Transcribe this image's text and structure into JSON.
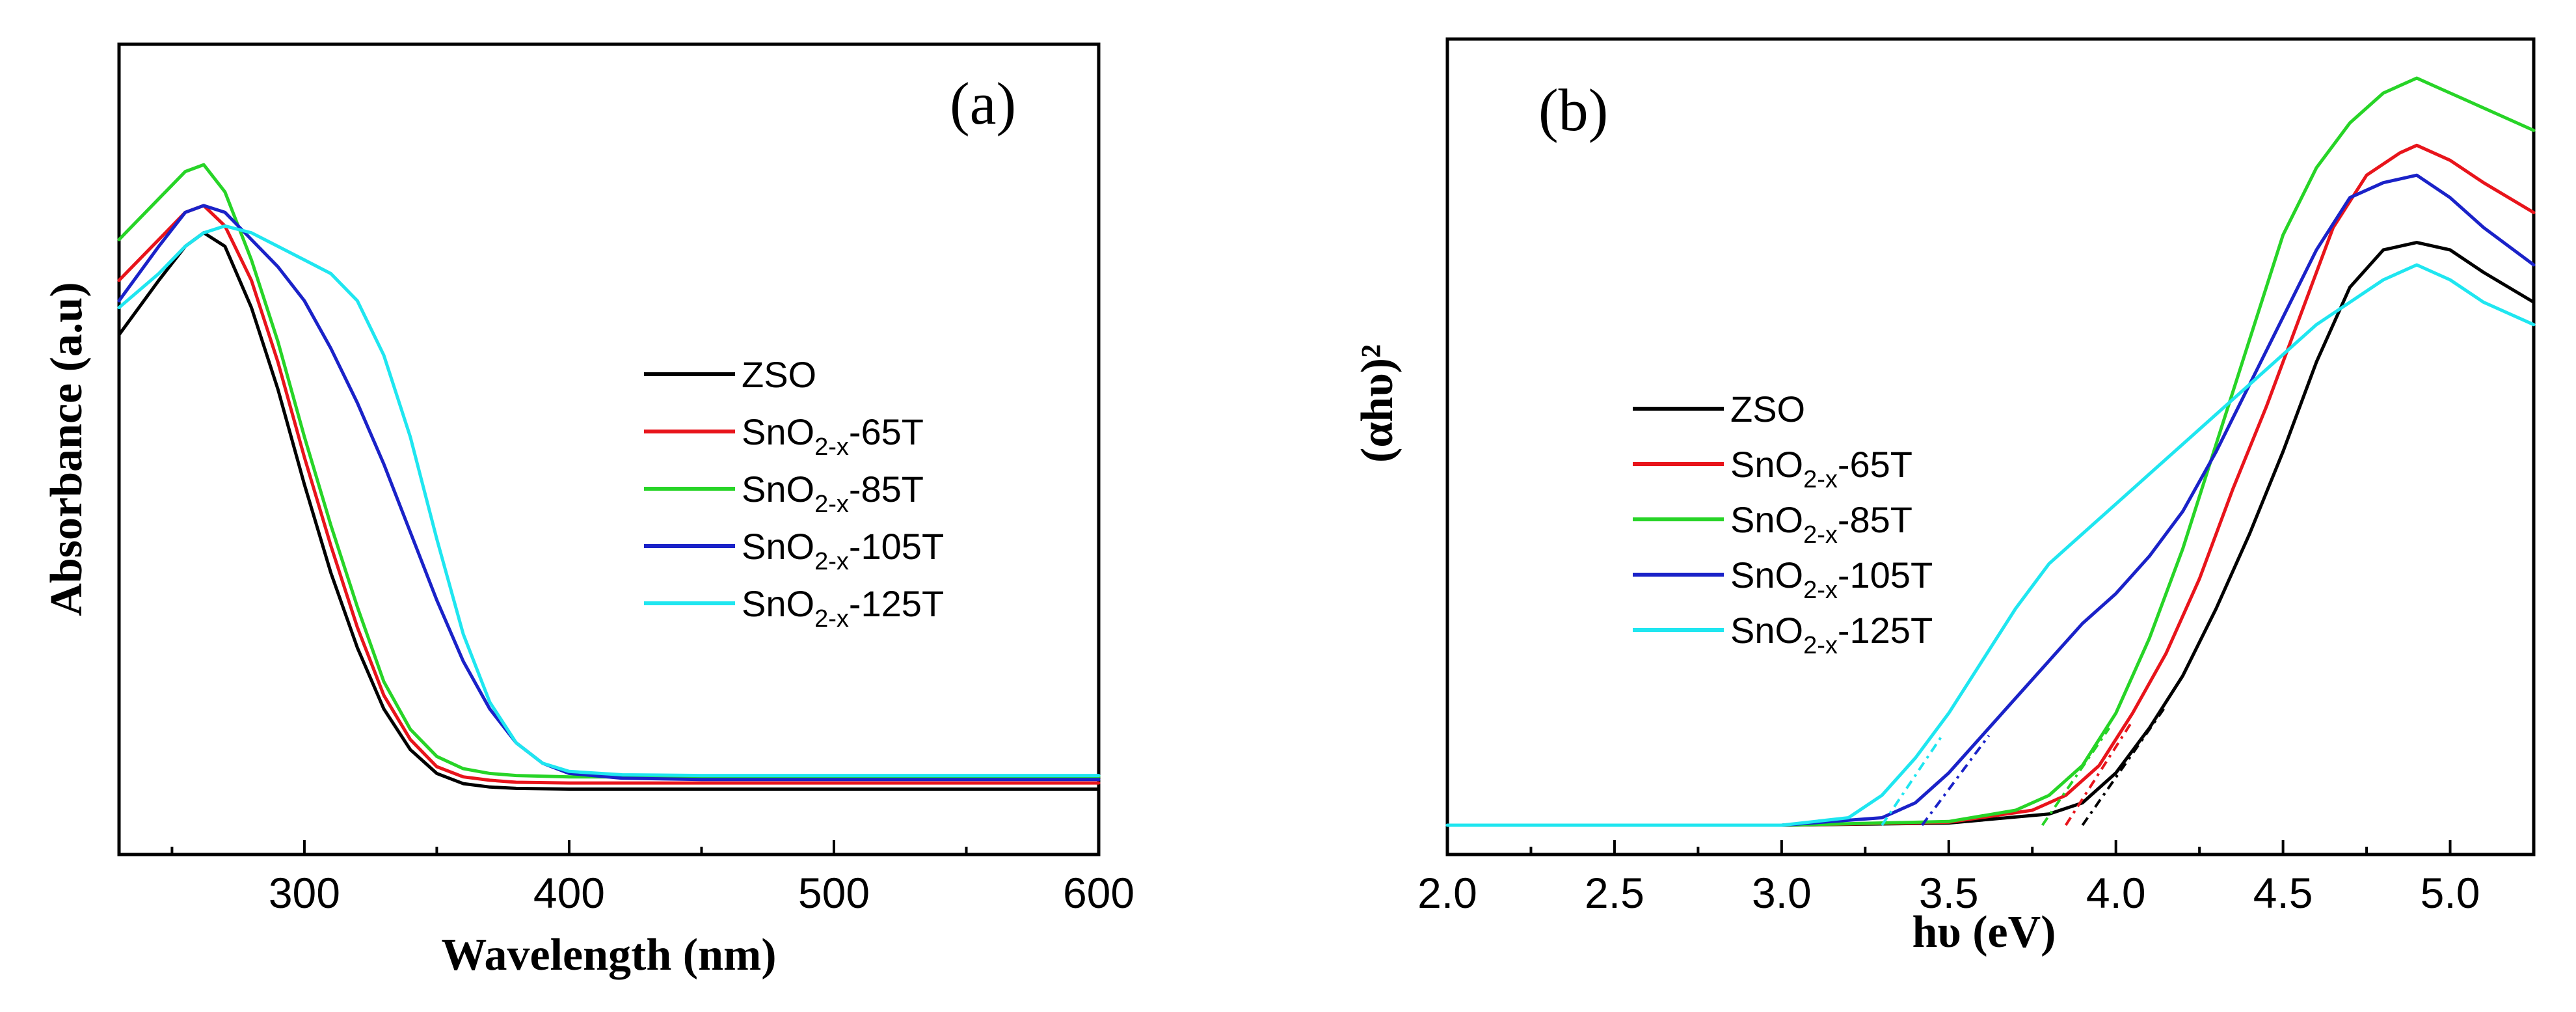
{
  "colors": {
    "ZSO": "#000000",
    "SnO2-x-65T": "#e8141b",
    "SnO2-x-85T": "#27d427",
    "SnO2-x-105T": "#1a22c8",
    "SnO2-x-125T": "#1fe6f0"
  },
  "chart_data": [
    {
      "panel": "(a)",
      "type": "line",
      "xlabel": "Wavelength (nm)",
      "ylabel": "Absorbance (a.u)",
      "xlim": [
        230,
        600
      ],
      "ylim": [
        0,
        1
      ],
      "xticks": [
        300,
        400,
        500,
        600
      ],
      "xtick_labels": [
        "300",
        "400",
        "500",
        "600"
      ],
      "legend": {
        "position": "center-right",
        "entries": [
          {
            "key": "ZSO",
            "text": "ZSO",
            "sub": "",
            "suffix": ""
          },
          {
            "key": "SnO2-x-65T",
            "text": "SnO",
            "sub": "2-x",
            "suffix": "-65T"
          },
          {
            "key": "SnO2-x-85T",
            "text": "SnO",
            "sub": "2-x",
            "suffix": "-85T"
          },
          {
            "key": "SnO2-x-105T",
            "text": "SnO",
            "sub": "2-x",
            "suffix": "-105T"
          },
          {
            "key": "SnO2-x-125T",
            "text": "SnO",
            "sub": "2-x",
            "suffix": "-125T"
          }
        ]
      },
      "series": [
        {
          "name": "ZSO",
          "x": [
            230,
            245,
            255,
            262,
            270,
            280,
            290,
            300,
            310,
            320,
            330,
            340,
            350,
            360,
            370,
            380,
            400,
            450,
            500,
            600
          ],
          "values": [
            0.68,
            0.76,
            0.81,
            0.83,
            0.81,
            0.72,
            0.6,
            0.46,
            0.33,
            0.22,
            0.13,
            0.07,
            0.035,
            0.02,
            0.015,
            0.013,
            0.012,
            0.012,
            0.012,
            0.012
          ]
        },
        {
          "name": "SnO2-x-65T",
          "x": [
            230,
            245,
            255,
            262,
            270,
            280,
            290,
            300,
            310,
            320,
            330,
            340,
            350,
            360,
            370,
            380,
            400,
            450,
            500,
            600
          ],
          "values": [
            0.76,
            0.82,
            0.86,
            0.87,
            0.84,
            0.76,
            0.64,
            0.5,
            0.37,
            0.25,
            0.15,
            0.085,
            0.045,
            0.03,
            0.025,
            0.022,
            0.021,
            0.021,
            0.021,
            0.021
          ]
        },
        {
          "name": "SnO2-x-85T",
          "x": [
            230,
            245,
            255,
            262,
            270,
            280,
            290,
            300,
            310,
            320,
            330,
            340,
            350,
            360,
            370,
            380,
            400,
            450,
            500,
            600
          ],
          "values": [
            0.82,
            0.88,
            0.92,
            0.93,
            0.89,
            0.79,
            0.67,
            0.53,
            0.4,
            0.28,
            0.17,
            0.1,
            0.06,
            0.042,
            0.035,
            0.032,
            0.03,
            0.03,
            0.03,
            0.03
          ]
        },
        {
          "name": "SnO2-x-105T",
          "x": [
            230,
            245,
            255,
            262,
            270,
            280,
            290,
            300,
            310,
            320,
            330,
            340,
            350,
            360,
            370,
            380,
            390,
            400,
            420,
            450,
            500,
            600
          ],
          "values": [
            0.73,
            0.81,
            0.86,
            0.87,
            0.86,
            0.82,
            0.78,
            0.73,
            0.66,
            0.58,
            0.49,
            0.39,
            0.29,
            0.2,
            0.13,
            0.08,
            0.05,
            0.035,
            0.028,
            0.026,
            0.026,
            0.026
          ]
        },
        {
          "name": "SnO2-x-125T",
          "x": [
            230,
            245,
            255,
            262,
            270,
            280,
            290,
            300,
            310,
            320,
            330,
            340,
            350,
            360,
            370,
            380,
            390,
            400,
            420,
            450,
            500,
            600
          ],
          "values": [
            0.72,
            0.77,
            0.81,
            0.83,
            0.84,
            0.83,
            0.81,
            0.79,
            0.77,
            0.73,
            0.65,
            0.53,
            0.38,
            0.24,
            0.14,
            0.08,
            0.05,
            0.038,
            0.033,
            0.032,
            0.032,
            0.032
          ]
        }
      ]
    },
    {
      "panel": "(b)",
      "type": "line",
      "xlabel": "hυ (eV)",
      "ylabel": "(αhυ)²",
      "xlim": [
        2.0,
        5.25
      ],
      "ylim": [
        0,
        1
      ],
      "xticks": [
        2.0,
        2.5,
        3.0,
        3.5,
        4.0,
        4.5,
        5.0
      ],
      "xtick_labels": [
        "2.0",
        "2.5",
        "3.0",
        "3.5",
        "4.0",
        "4.5",
        "5.0"
      ],
      "legend": {
        "position": "center-left",
        "entries": [
          {
            "key": "ZSO",
            "text": "ZSO",
            "sub": "",
            "suffix": ""
          },
          {
            "key": "SnO2-x-65T",
            "text": " SnO",
            "sub": "2-x",
            "suffix": "-65T"
          },
          {
            "key": "SnO2-x-85T",
            "text": "SnO",
            "sub": "2-x",
            "suffix": "-85T"
          },
          {
            "key": "SnO2-x-105T",
            "text": "SnO",
            "sub": "2-x",
            "suffix": "-105T"
          },
          {
            "key": "SnO2-x-125T",
            "text": "SnO",
            "sub": "2-x",
            "suffix": "-125T"
          }
        ]
      },
      "series": [
        {
          "name": "ZSO",
          "x": [
            2.0,
            3.0,
            3.5,
            3.8,
            3.9,
            4.0,
            4.1,
            4.2,
            4.3,
            4.4,
            4.5,
            4.6,
            4.7,
            4.8,
            4.9,
            5.0,
            5.1,
            5.25
          ],
          "values": [
            0.0,
            0.0,
            0.003,
            0.015,
            0.03,
            0.07,
            0.13,
            0.2,
            0.29,
            0.39,
            0.5,
            0.62,
            0.72,
            0.77,
            0.78,
            0.77,
            0.74,
            0.7
          ]
        },
        {
          "name": "SnO2-x-65T",
          "x": [
            2.0,
            3.0,
            3.5,
            3.75,
            3.85,
            3.95,
            4.05,
            4.15,
            4.25,
            4.35,
            4.45,
            4.55,
            4.65,
            4.75,
            4.85,
            4.9,
            5.0,
            5.1,
            5.25
          ],
          "values": [
            0.0,
            0.0,
            0.004,
            0.02,
            0.04,
            0.08,
            0.15,
            0.23,
            0.33,
            0.45,
            0.56,
            0.68,
            0.8,
            0.87,
            0.9,
            0.91,
            0.89,
            0.86,
            0.82
          ]
        },
        {
          "name": "SnO2-x-85T",
          "x": [
            2.0,
            3.0,
            3.5,
            3.7,
            3.8,
            3.9,
            4.0,
            4.1,
            4.2,
            4.3,
            4.4,
            4.5,
            4.6,
            4.7,
            4.8,
            4.9,
            4.95,
            5.05,
            5.15,
            5.25
          ],
          "values": [
            0.0,
            0.0,
            0.005,
            0.02,
            0.04,
            0.08,
            0.15,
            0.25,
            0.37,
            0.51,
            0.65,
            0.79,
            0.88,
            0.94,
            0.98,
            1.0,
            0.99,
            0.97,
            0.95,
            0.93
          ]
        },
        {
          "name": "SnO2-x-105T",
          "x": [
            2.0,
            3.0,
            3.3,
            3.4,
            3.5,
            3.6,
            3.7,
            3.8,
            3.9,
            4.0,
            4.1,
            4.2,
            4.3,
            4.4,
            4.5,
            4.6,
            4.7,
            4.8,
            4.9,
            5.0,
            5.1,
            5.25
          ],
          "values": [
            0.0,
            0.0,
            0.01,
            0.03,
            0.07,
            0.12,
            0.17,
            0.22,
            0.27,
            0.31,
            0.36,
            0.42,
            0.5,
            0.59,
            0.68,
            0.77,
            0.84,
            0.86,
            0.87,
            0.84,
            0.8,
            0.75
          ]
        },
        {
          "name": "SnO2-x-125T",
          "x": [
            2.0,
            3.0,
            3.2,
            3.3,
            3.4,
            3.5,
            3.6,
            3.7,
            3.8,
            3.9,
            4.0,
            4.1,
            4.2,
            4.3,
            4.4,
            4.5,
            4.6,
            4.7,
            4.8,
            4.9,
            5.0,
            5.1,
            5.25
          ],
          "values": [
            0.0,
            0.0,
            0.01,
            0.04,
            0.09,
            0.15,
            0.22,
            0.29,
            0.35,
            0.39,
            0.43,
            0.47,
            0.51,
            0.55,
            0.59,
            0.63,
            0.67,
            0.7,
            0.73,
            0.75,
            0.73,
            0.7,
            0.67
          ]
        }
      ]
    }
  ]
}
